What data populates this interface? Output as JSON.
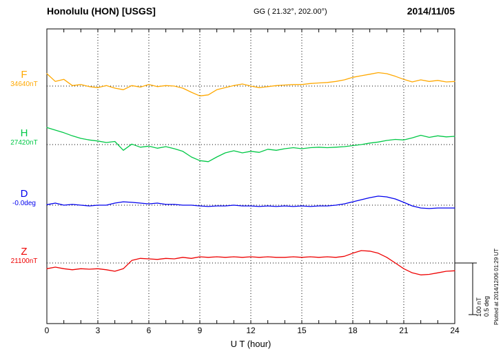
{
  "header": {
    "station": "Honolulu (HON)  [USGS]",
    "coords": "GG ( 21.32°, 202.00°)",
    "date": "2014/11/05"
  },
  "footer": {
    "plotted_at": "Plotted at 2014/12/06 01:29 UT"
  },
  "scale_bar": {
    "nt_label": "100 nT",
    "deg_label": "0.5 deg"
  },
  "chart_data": {
    "type": "line",
    "title": "Honolulu (HON) [USGS] magnetogram 2014/11/05",
    "xlabel": "U T (hour)",
    "x_range": [
      0,
      24
    ],
    "x_ticks": [
      0,
      3,
      6,
      9,
      12,
      15,
      18,
      21,
      24
    ],
    "x_step_hours": 0.5,
    "grid": "dotted vertical lines every 3 h; dotted horizontal baseline per trace",
    "legend_position": "left margin (trace name with baseline value)",
    "scale": {
      "nT_per_div": 100,
      "deg_per_div": 0.5
    },
    "series": [
      {
        "name": "F",
        "baseline_value": "34640nT",
        "unit": "nT",
        "color": "#ffa800",
        "values": [
          24,
          9,
          13,
          1,
          3,
          -1,
          -3,
          1,
          -4,
          -7,
          1,
          -2,
          3,
          -1,
          1,
          0,
          -4,
          -12,
          -19,
          -17,
          -7,
          -3,
          1,
          4,
          0,
          -3,
          -1,
          1,
          2,
          3,
          3,
          5,
          6,
          7,
          9,
          12,
          17,
          20,
          23,
          26,
          24,
          19,
          13,
          8,
          12,
          9,
          11,
          8,
          9
        ]
      },
      {
        "name": "H",
        "baseline_value": "27420nT",
        "unit": "nT",
        "color": "#00c846",
        "values": [
          33,
          28,
          23,
          17,
          12,
          9,
          7,
          4,
          6,
          -11,
          1,
          -5,
          -3,
          -7,
          -4,
          -8,
          -13,
          -24,
          -31,
          -33,
          -24,
          -16,
          -12,
          -16,
          -13,
          -15,
          -9,
          -11,
          -8,
          -6,
          -8,
          -6,
          -5,
          -6,
          -5,
          -4,
          -2,
          0,
          3,
          5,
          8,
          10,
          9,
          13,
          18,
          14,
          17,
          15,
          16
        ]
      },
      {
        "name": "D",
        "baseline_value": "-0.0deg",
        "unit": "deg",
        "color": "#0000ee",
        "values": [
          0.005,
          0.02,
          0,
          0.007,
          0,
          -0.007,
          0,
          0,
          0.02,
          0.033,
          0.027,
          0.02,
          0.013,
          0.02,
          0.007,
          0.007,
          0,
          0,
          -0.007,
          -0.013,
          -0.007,
          -0.007,
          0,
          -0.007,
          -0.007,
          -0.013,
          -0.007,
          -0.013,
          -0.007,
          -0.013,
          -0.007,
          -0.013,
          -0.007,
          -0.007,
          0,
          0.013,
          0.033,
          0.053,
          0.073,
          0.087,
          0.08,
          0.06,
          0.027,
          -0.007,
          -0.027,
          -0.033,
          -0.027,
          -0.027,
          -0.027
        ]
      },
      {
        "name": "Z",
        "baseline_value": "21100nT",
        "unit": "nT",
        "color": "#ee0000",
        "values": [
          -11,
          -8,
          -11,
          -13,
          -11,
          -12,
          -11,
          -13,
          -16,
          -11,
          5,
          9,
          8,
          7,
          9,
          8,
          11,
          9,
          12,
          11,
          12,
          11,
          12,
          11,
          12,
          11,
          12,
          11,
          11,
          12,
          11,
          12,
          11,
          12,
          11,
          13,
          19,
          24,
          23,
          19,
          11,
          0,
          -11,
          -19,
          -23,
          -22,
          -19,
          -16,
          -15
        ]
      }
    ]
  }
}
